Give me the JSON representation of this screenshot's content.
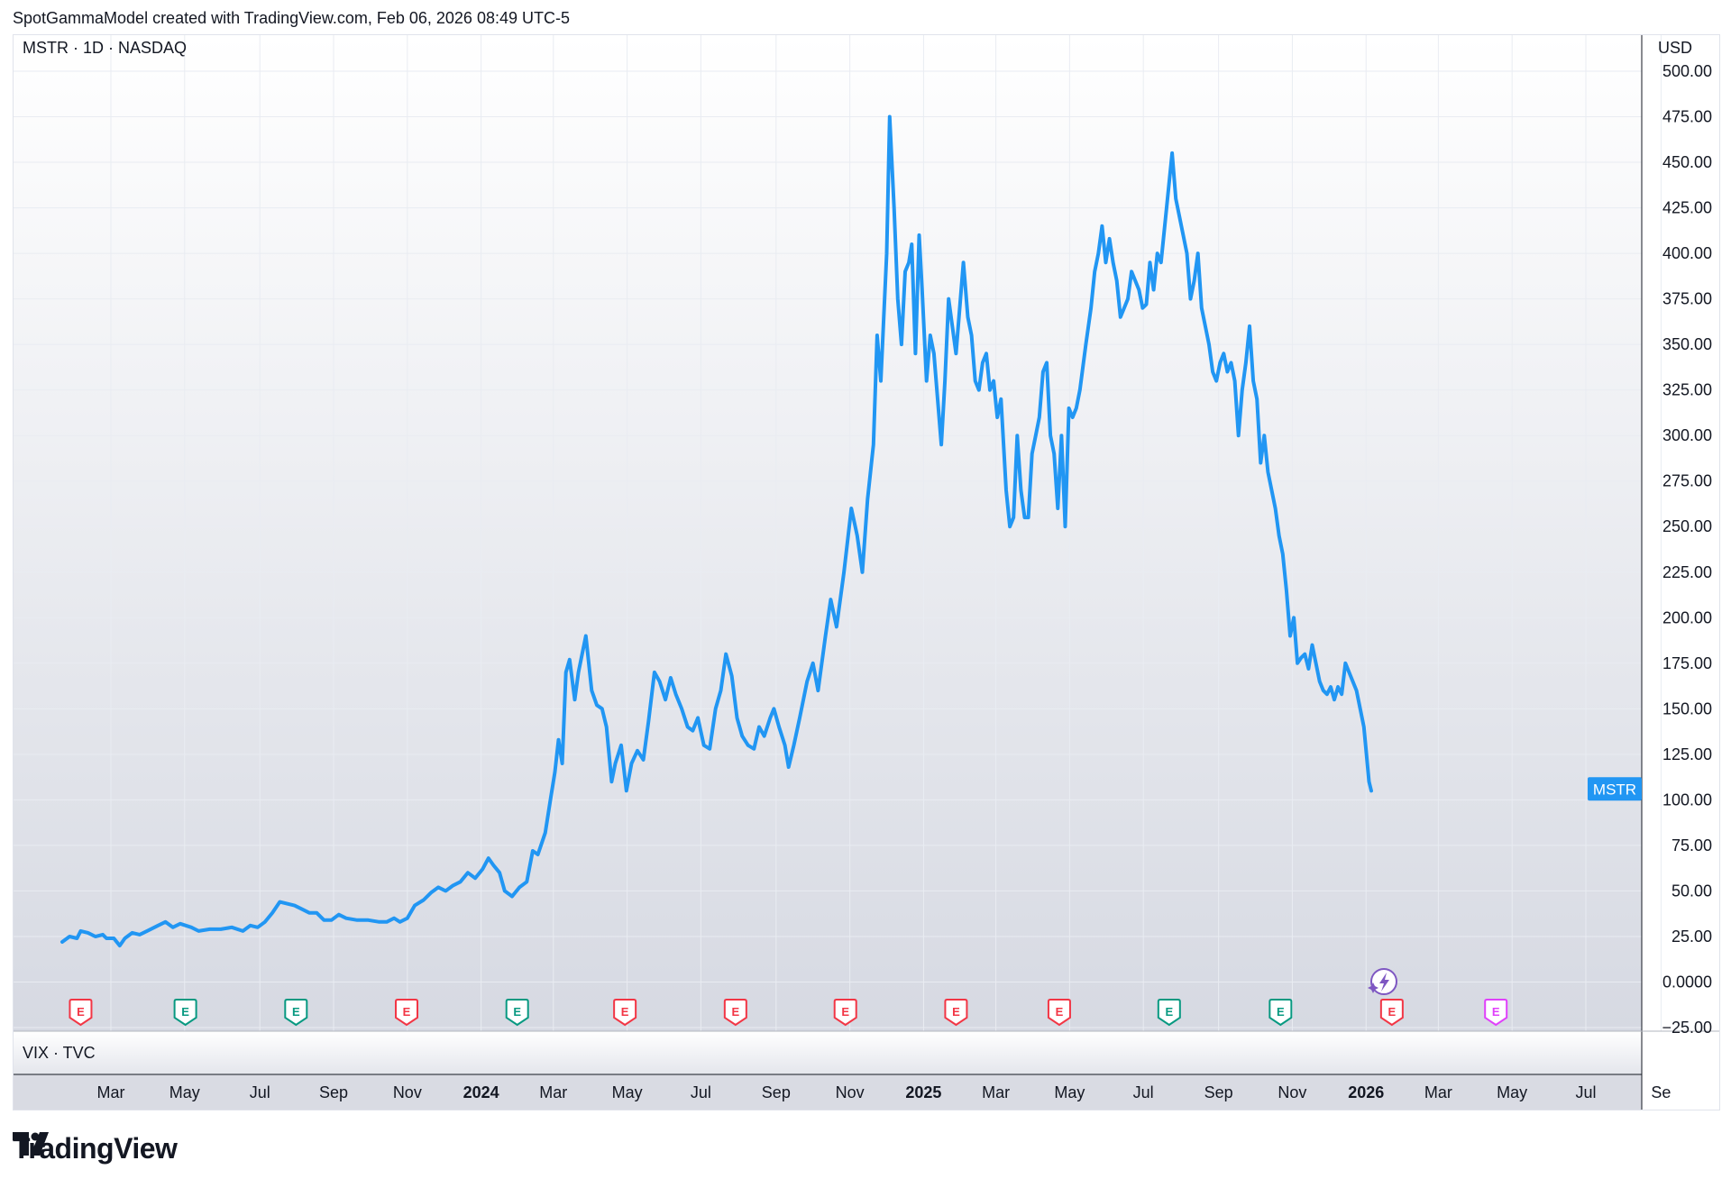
{
  "header": {
    "text": "SpotGammaModel created with TradingView.com, Feb 06, 2026 08:49 UTC-5"
  },
  "main_pane": {
    "label": "MSTR · 1D · NASDAQ",
    "currency": "USD",
    "price_tag": "MSTR"
  },
  "sub_pane": {
    "label": "VIX · TVC"
  },
  "logo": {
    "text": "TradingView"
  },
  "colors": {
    "line": "#2196f3",
    "grid": "#e9ecf2",
    "earnings_red": "#f23645",
    "earnings_green": "#089981",
    "earnings_future": "#e040fb",
    "event_purple": "#7e57c2"
  },
  "chart_data": {
    "type": "line",
    "y_unit": "USD",
    "ylim": [
      -25,
      515
    ],
    "y_ticks": [
      "500.00",
      "475.00",
      "450.00",
      "425.00",
      "400.00",
      "375.00",
      "350.00",
      "325.00",
      "300.00",
      "275.00",
      "250.00",
      "225.00",
      "200.00",
      "175.00",
      "150.00",
      "125.00",
      "100.00",
      "75.00",
      "50.00",
      "25.00",
      "0.0000",
      "−25.00"
    ],
    "x_labels": [
      {
        "t": "Mar",
        "i": 0.66,
        "year": false
      },
      {
        "t": "May",
        "i": 1.66,
        "year": false
      },
      {
        "t": "Jul",
        "i": 2.68,
        "year": false
      },
      {
        "t": "Sep",
        "i": 3.68,
        "year": false
      },
      {
        "t": "Nov",
        "i": 4.68,
        "year": false
      },
      {
        "t": "2024",
        "i": 5.68,
        "year": true
      },
      {
        "t": "Mar",
        "i": 6.66,
        "year": false
      },
      {
        "t": "May",
        "i": 7.66,
        "year": false
      },
      {
        "t": "Jul",
        "i": 8.66,
        "year": false
      },
      {
        "t": "Sep",
        "i": 9.68,
        "year": false
      },
      {
        "t": "Nov",
        "i": 10.68,
        "year": false
      },
      {
        "t": "2025",
        "i": 11.68,
        "year": true
      },
      {
        "t": "Mar",
        "i": 12.66,
        "year": false
      },
      {
        "t": "May",
        "i": 13.66,
        "year": false
      },
      {
        "t": "Jul",
        "i": 14.66,
        "year": false
      },
      {
        "t": "Sep",
        "i": 15.68,
        "year": false
      },
      {
        "t": "Nov",
        "i": 16.68,
        "year": false
      },
      {
        "t": "2026",
        "i": 17.68,
        "year": true
      },
      {
        "t": "Mar",
        "i": 18.66,
        "year": false
      },
      {
        "t": "May",
        "i": 19.66,
        "year": false
      },
      {
        "t": "Jul",
        "i": 20.66,
        "year": false
      },
      {
        "t": "Se",
        "i": 21.68,
        "year": false
      }
    ],
    "x_domain": [
      0,
      21.8
    ],
    "series": [
      {
        "points": [
          [
            0.0,
            22
          ],
          [
            0.1,
            25
          ],
          [
            0.2,
            24
          ],
          [
            0.25,
            28
          ],
          [
            0.35,
            27
          ],
          [
            0.45,
            25
          ],
          [
            0.55,
            26
          ],
          [
            0.6,
            24
          ],
          [
            0.7,
            24
          ],
          [
            0.78,
            20
          ],
          [
            0.85,
            24
          ],
          [
            0.95,
            27
          ],
          [
            1.05,
            26
          ],
          [
            1.15,
            28
          ],
          [
            1.3,
            31
          ],
          [
            1.4,
            33
          ],
          [
            1.5,
            30
          ],
          [
            1.6,
            32
          ],
          [
            1.75,
            30
          ],
          [
            1.85,
            28
          ],
          [
            2.0,
            29
          ],
          [
            2.15,
            29
          ],
          [
            2.3,
            30
          ],
          [
            2.45,
            28
          ],
          [
            2.55,
            31
          ],
          [
            2.65,
            30
          ],
          [
            2.75,
            33
          ],
          [
            2.85,
            38
          ],
          [
            2.95,
            44
          ],
          [
            3.05,
            43
          ],
          [
            3.15,
            42
          ],
          [
            3.25,
            40
          ],
          [
            3.35,
            38
          ],
          [
            3.45,
            38
          ],
          [
            3.55,
            34
          ],
          [
            3.65,
            34
          ],
          [
            3.75,
            37
          ],
          [
            3.85,
            35
          ],
          [
            4.0,
            34
          ],
          [
            4.15,
            34
          ],
          [
            4.3,
            33
          ],
          [
            4.4,
            33
          ],
          [
            4.5,
            35
          ],
          [
            4.58,
            33
          ],
          [
            4.68,
            35
          ],
          [
            4.78,
            42
          ],
          [
            4.9,
            45
          ],
          [
            5.0,
            49
          ],
          [
            5.1,
            52
          ],
          [
            5.2,
            50
          ],
          [
            5.3,
            53
          ],
          [
            5.4,
            55
          ],
          [
            5.5,
            60
          ],
          [
            5.6,
            57
          ],
          [
            5.7,
            62
          ],
          [
            5.78,
            68
          ],
          [
            5.85,
            64
          ],
          [
            5.93,
            60
          ],
          [
            6.0,
            50
          ],
          [
            6.1,
            47
          ],
          [
            6.2,
            52
          ],
          [
            6.3,
            55
          ],
          [
            6.38,
            72
          ],
          [
            6.45,
            70
          ],
          [
            6.55,
            82
          ],
          [
            6.62,
            100
          ],
          [
            6.68,
            115
          ],
          [
            6.73,
            133
          ],
          [
            6.78,
            120
          ],
          [
            6.83,
            170
          ],
          [
            6.88,
            177
          ],
          [
            6.95,
            155
          ],
          [
            7.0,
            170
          ],
          [
            7.05,
            180
          ],
          [
            7.1,
            190
          ],
          [
            7.18,
            160
          ],
          [
            7.25,
            152
          ],
          [
            7.32,
            150
          ],
          [
            7.38,
            140
          ],
          [
            7.45,
            110
          ],
          [
            7.5,
            120
          ],
          [
            7.58,
            130
          ],
          [
            7.65,
            105
          ],
          [
            7.72,
            120
          ],
          [
            7.8,
            127
          ],
          [
            7.88,
            122
          ],
          [
            7.95,
            143
          ],
          [
            8.03,
            170
          ],
          [
            8.1,
            165
          ],
          [
            8.18,
            155
          ],
          [
            8.25,
            167
          ],
          [
            8.32,
            158
          ],
          [
            8.4,
            150
          ],
          [
            8.48,
            140
          ],
          [
            8.55,
            138
          ],
          [
            8.62,
            145
          ],
          [
            8.7,
            130
          ],
          [
            8.78,
            128
          ],
          [
            8.86,
            150
          ],
          [
            8.93,
            160
          ],
          [
            9.0,
            180
          ],
          [
            9.08,
            168
          ],
          [
            9.15,
            145
          ],
          [
            9.22,
            135
          ],
          [
            9.3,
            130
          ],
          [
            9.38,
            128
          ],
          [
            9.45,
            140
          ],
          [
            9.52,
            135
          ],
          [
            9.6,
            145
          ],
          [
            9.65,
            150
          ],
          [
            9.72,
            140
          ],
          [
            9.8,
            130
          ],
          [
            9.85,
            118
          ],
          [
            9.92,
            130
          ],
          [
            10.0,
            145
          ],
          [
            10.1,
            165
          ],
          [
            10.18,
            175
          ],
          [
            10.25,
            160
          ],
          [
            10.35,
            190
          ],
          [
            10.42,
            210
          ],
          [
            10.5,
            195
          ],
          [
            10.6,
            225
          ],
          [
            10.7,
            260
          ],
          [
            10.78,
            245
          ],
          [
            10.85,
            225
          ],
          [
            10.92,
            265
          ],
          [
            11.0,
            295
          ],
          [
            11.05,
            355
          ],
          [
            11.1,
            330
          ],
          [
            11.18,
            400
          ],
          [
            11.22,
            475
          ],
          [
            11.28,
            425
          ],
          [
            11.33,
            375
          ],
          [
            11.38,
            350
          ],
          [
            11.43,
            390
          ],
          [
            11.48,
            395
          ],
          [
            11.52,
            405
          ],
          [
            11.57,
            345
          ],
          [
            11.62,
            410
          ],
          [
            11.66,
            380
          ],
          [
            11.72,
            330
          ],
          [
            11.77,
            355
          ],
          [
            11.82,
            345
          ],
          [
            11.87,
            320
          ],
          [
            11.92,
            295
          ],
          [
            11.97,
            330
          ],
          [
            12.02,
            375
          ],
          [
            12.07,
            360
          ],
          [
            12.12,
            345
          ],
          [
            12.17,
            370
          ],
          [
            12.22,
            395
          ],
          [
            12.28,
            365
          ],
          [
            12.33,
            355
          ],
          [
            12.38,
            330
          ],
          [
            12.43,
            325
          ],
          [
            12.48,
            340
          ],
          [
            12.53,
            345
          ],
          [
            12.58,
            325
          ],
          [
            12.63,
            330
          ],
          [
            12.68,
            310
          ],
          [
            12.73,
            320
          ],
          [
            12.8,
            270
          ],
          [
            12.85,
            250
          ],
          [
            12.9,
            255
          ],
          [
            12.95,
            300
          ],
          [
            13.0,
            270
          ],
          [
            13.05,
            255
          ],
          [
            13.1,
            255
          ],
          [
            13.15,
            290
          ],
          [
            13.2,
            300
          ],
          [
            13.25,
            310
          ],
          [
            13.3,
            335
          ],
          [
            13.35,
            340
          ],
          [
            13.4,
            300
          ],
          [
            13.45,
            290
          ],
          [
            13.5,
            260
          ],
          [
            13.55,
            300
          ],
          [
            13.6,
            250
          ],
          [
            13.65,
            315
          ],
          [
            13.7,
            310
          ],
          [
            13.75,
            315
          ],
          [
            13.8,
            325
          ],
          [
            13.88,
            350
          ],
          [
            13.95,
            370
          ],
          [
            14.0,
            390
          ],
          [
            14.05,
            400
          ],
          [
            14.1,
            415
          ],
          [
            14.15,
            395
          ],
          [
            14.2,
            408
          ],
          [
            14.25,
            395
          ],
          [
            14.3,
            385
          ],
          [
            14.35,
            365
          ],
          [
            14.4,
            370
          ],
          [
            14.45,
            375
          ],
          [
            14.5,
            390
          ],
          [
            14.55,
            385
          ],
          [
            14.6,
            380
          ],
          [
            14.65,
            370
          ],
          [
            14.7,
            372
          ],
          [
            14.75,
            395
          ],
          [
            14.8,
            380
          ],
          [
            14.85,
            400
          ],
          [
            14.9,
            395
          ],
          [
            14.95,
            415
          ],
          [
            15.0,
            435
          ],
          [
            15.05,
            455
          ],
          [
            15.1,
            430
          ],
          [
            15.15,
            420
          ],
          [
            15.2,
            410
          ],
          [
            15.25,
            400
          ],
          [
            15.3,
            375
          ],
          [
            15.35,
            385
          ],
          [
            15.4,
            400
          ],
          [
            15.45,
            370
          ],
          [
            15.5,
            360
          ],
          [
            15.55,
            350
          ],
          [
            15.6,
            335
          ],
          [
            15.65,
            330
          ],
          [
            15.7,
            340
          ],
          [
            15.75,
            345
          ],
          [
            15.8,
            335
          ],
          [
            15.85,
            340
          ],
          [
            15.9,
            330
          ],
          [
            15.95,
            300
          ],
          [
            16.0,
            325
          ],
          [
            16.05,
            340
          ],
          [
            16.1,
            360
          ],
          [
            16.15,
            330
          ],
          [
            16.2,
            320
          ],
          [
            16.25,
            285
          ],
          [
            16.3,
            300
          ],
          [
            16.35,
            280
          ],
          [
            16.4,
            270
          ],
          [
            16.45,
            260
          ],
          [
            16.5,
            245
          ],
          [
            16.55,
            235
          ],
          [
            16.6,
            215
          ],
          [
            16.65,
            190
          ],
          [
            16.7,
            200
          ],
          [
            16.75,
            175
          ],
          [
            16.8,
            178
          ],
          [
            16.85,
            180
          ],
          [
            16.9,
            172
          ],
          [
            16.95,
            185
          ],
          [
            17.0,
            175
          ],
          [
            17.05,
            165
          ],
          [
            17.1,
            160
          ],
          [
            17.15,
            158
          ],
          [
            17.2,
            162
          ],
          [
            17.25,
            155
          ],
          [
            17.3,
            162
          ],
          [
            17.35,
            158
          ],
          [
            17.4,
            175
          ],
          [
            17.45,
            170
          ],
          [
            17.5,
            165
          ],
          [
            17.55,
            160
          ],
          [
            17.6,
            150
          ],
          [
            17.65,
            140
          ],
          [
            17.72,
            110
          ],
          [
            17.75,
            105
          ]
        ]
      }
    ],
    "last_value_label": {
      "value": 106,
      "text": "MSTR"
    },
    "earnings_markers": [
      {
        "i": 0.25,
        "kind": "red",
        "text": "E"
      },
      {
        "i": 1.67,
        "kind": "green",
        "text": "E"
      },
      {
        "i": 3.17,
        "kind": "green",
        "text": "E"
      },
      {
        "i": 4.67,
        "kind": "red",
        "text": "E"
      },
      {
        "i": 6.17,
        "kind": "green",
        "text": "E"
      },
      {
        "i": 7.63,
        "kind": "red",
        "text": "E"
      },
      {
        "i": 9.13,
        "kind": "red",
        "text": "E"
      },
      {
        "i": 10.62,
        "kind": "red",
        "text": "E"
      },
      {
        "i": 12.12,
        "kind": "red",
        "text": "E"
      },
      {
        "i": 13.52,
        "kind": "red",
        "text": "E"
      },
      {
        "i": 15.01,
        "kind": "green",
        "text": "E"
      },
      {
        "i": 16.52,
        "kind": "green",
        "text": "E"
      },
      {
        "i": 18.03,
        "kind": "red",
        "text": "E"
      },
      {
        "i": 19.44,
        "kind": "future",
        "text": "E"
      }
    ],
    "grid": true
  }
}
